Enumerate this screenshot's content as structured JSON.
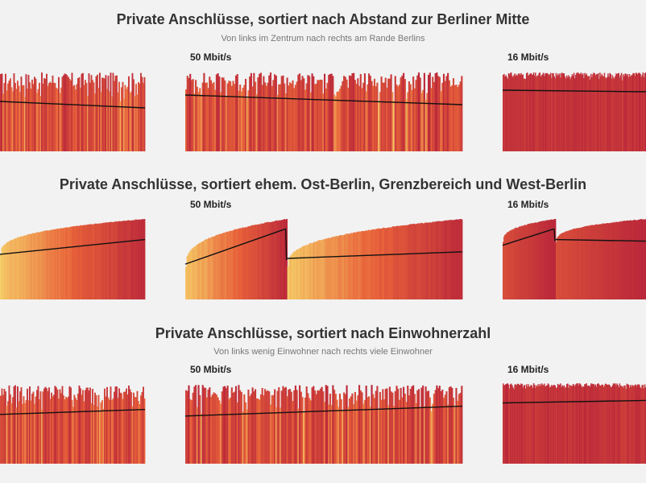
{
  "sections": [
    {
      "title": "Private Anschlüsse, sortiert nach Abstand zur Berliner Mitte",
      "subtitle": "Von links im Zentrum nach rechts am Rande Berlins"
    },
    {
      "title": "Private Anschlüsse, sortiert ehem. Ost-Berlin, Grenzbereich und West-Berlin",
      "subtitle": ""
    },
    {
      "title": "Private Anschlüsse, sortiert nach Einwohnerzahl",
      "subtitle": "Von links wenig Einwohner nach rechts viele Einwohner"
    }
  ],
  "panel_labels": [
    "",
    "50 Mbit/s",
    "16 Mbit/s"
  ],
  "colors": {
    "low": "#f6d36a",
    "mid": "#e8623a",
    "high": "#b8253a",
    "trend": "#111111",
    "background": "#f2f2f2"
  },
  "chart_data": [
    {
      "type": "bar",
      "section": 1,
      "panels": [
        {
          "label": "",
          "bars": 120,
          "level_range": [
            0.6,
            0.98
          ],
          "trend_start": 0.62,
          "trend_end": 0.54,
          "sorted": false,
          "segments": 1
        },
        {
          "label": "50 Mbit/s",
          "bars": 200,
          "level_range": [
            0.6,
            0.98
          ],
          "trend_start": 0.7,
          "trend_end": 0.58,
          "sorted": false,
          "segments": 1
        },
        {
          "label": "16 Mbit/s",
          "bars": 160,
          "level_range": [
            0.88,
            0.98
          ],
          "trend_start": 0.76,
          "trend_end": 0.74,
          "sorted": false,
          "segments": 1
        }
      ]
    },
    {
      "type": "bar",
      "section": 2,
      "panels": [
        {
          "label": "",
          "bars": 130,
          "level_range": [
            0.55,
            0.98
          ],
          "trend_start": 0.55,
          "trend_end": 0.73,
          "sorted": true,
          "segments": 1
        },
        {
          "label": "50 Mbit/s",
          "bars": 220,
          "level_range": [
            0.4,
            0.98
          ],
          "trend_start": 0.43,
          "trend_end": 0.58,
          "sorted": true,
          "segments": 2
        },
        {
          "label": "16 Mbit/s",
          "bars": 170,
          "level_range": [
            0.7,
            0.98
          ],
          "trend_start": 0.66,
          "trend_end": 0.71,
          "sorted": true,
          "segments": 2
        }
      ]
    },
    {
      "type": "bar",
      "section": 3,
      "panels": [
        {
          "label": "",
          "bars": 120,
          "level_range": [
            0.6,
            0.96
          ],
          "trend_start": 0.6,
          "trend_end": 0.66,
          "sorted": false,
          "segments": 1
        },
        {
          "label": "50 Mbit/s",
          "bars": 200,
          "level_range": [
            0.6,
            0.96
          ],
          "trend_start": 0.58,
          "trend_end": 0.7,
          "sorted": false,
          "segments": 1
        },
        {
          "label": "16 Mbit/s",
          "bars": 160,
          "level_range": [
            0.9,
            0.98
          ],
          "trend_start": 0.74,
          "trend_end": 0.77,
          "sorted": false,
          "segments": 1
        }
      ]
    }
  ]
}
